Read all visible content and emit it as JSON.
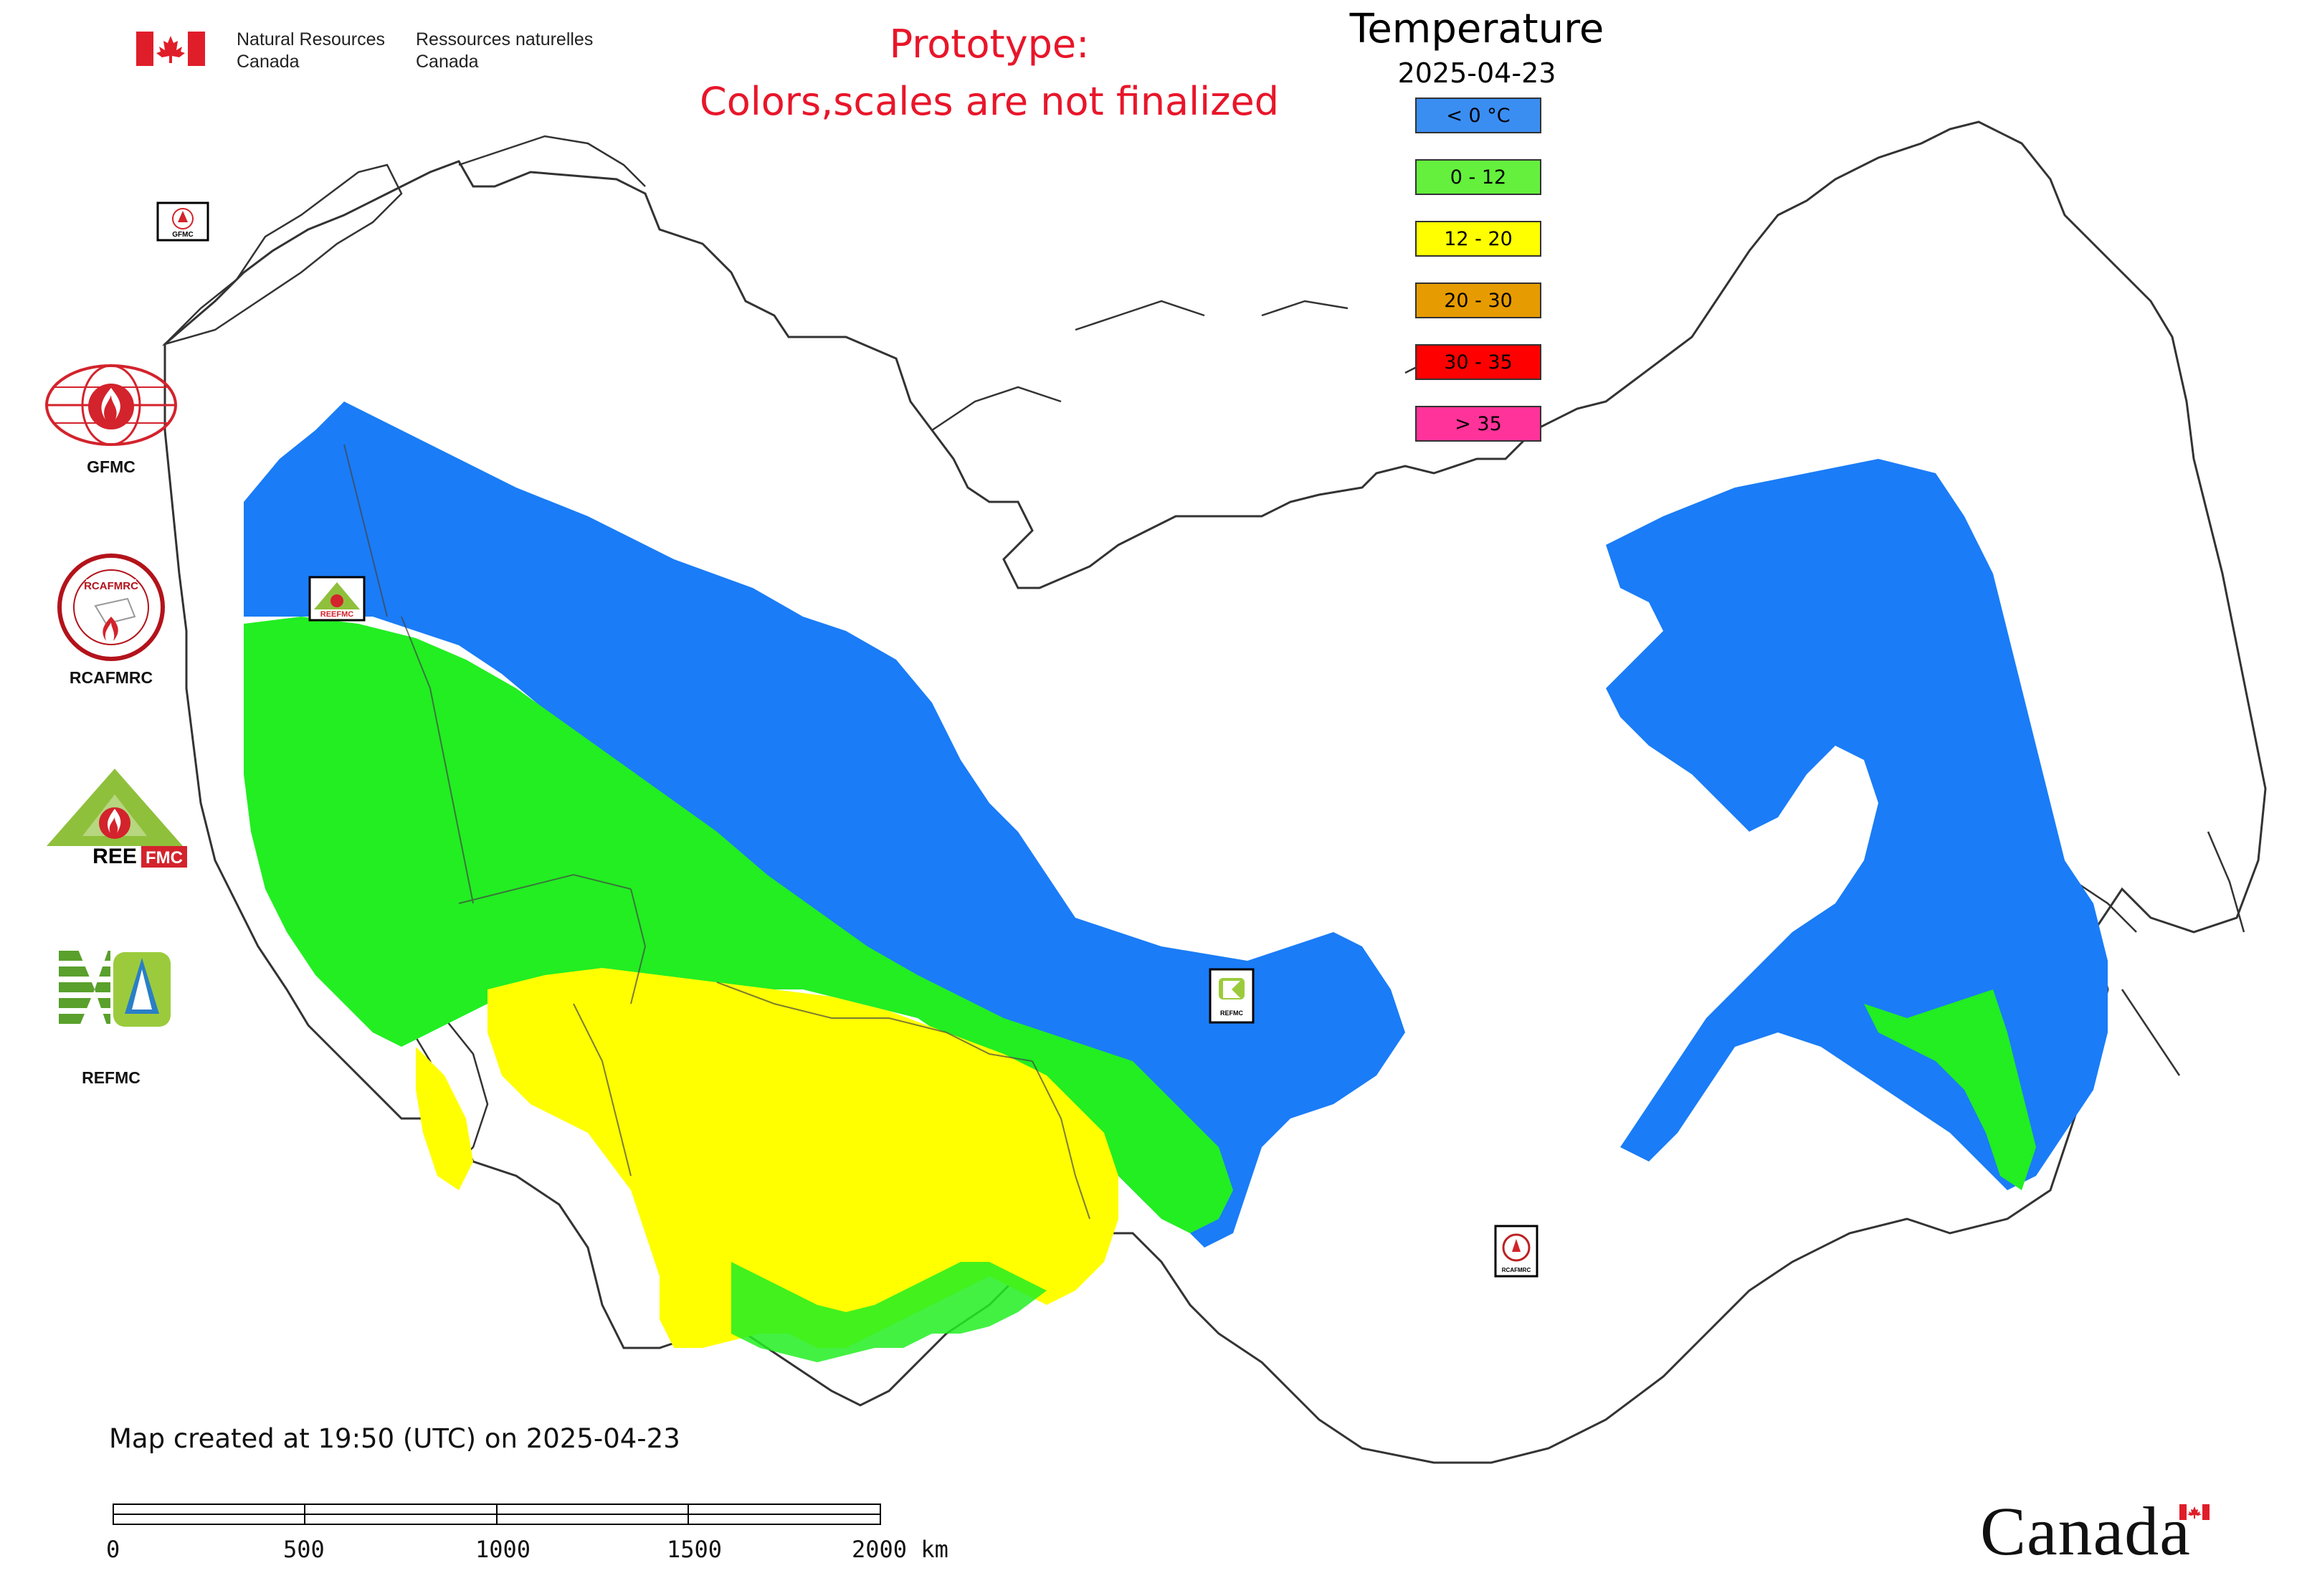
{
  "header": {
    "nrc_en_line1": "Natural Resources",
    "nrc_en_line2": "Canada",
    "nrc_fr_line1": "Ressources naturelles",
    "nrc_fr_line2": "Canada",
    "prototype_line1": "Prototype:",
    "prototype_line2": "Colors,scales are not finalized"
  },
  "map": {
    "title": "Temperature",
    "date": "2025-04-23",
    "legend": [
      {
        "label": "< 0 °C",
        "color": "#3a8ef2"
      },
      {
        "label": "0 - 12",
        "color": "#64f03c"
      },
      {
        "label": "12 - 20",
        "color": "#ffff00"
      },
      {
        "label": "20 - 30",
        "color": "#e69b00"
      },
      {
        "label": "30 - 35",
        "color": "#ff0000"
      },
      {
        "label": "> 35",
        "color": "#ff3399"
      }
    ],
    "region_colors": {
      "cold": "#1a7cf7",
      "cool": "#22ee22",
      "warm": "#ffff00",
      "outline": "#333333"
    }
  },
  "center_markers": [
    "GFMC",
    "REEFMC",
    "REFMC",
    "RCAFMRC"
  ],
  "logos": [
    {
      "name": "GFMC"
    },
    {
      "name": "RCAFMRC"
    },
    {
      "name": "REEFMC"
    },
    {
      "name": "REFMC"
    }
  ],
  "footer": {
    "created": "Map created at 19:50 (UTC) on 2025-04-23",
    "scale_ticks": [
      "0",
      "500",
      "1000",
      "1500",
      "2000 km"
    ],
    "wordmark": "Canada"
  }
}
